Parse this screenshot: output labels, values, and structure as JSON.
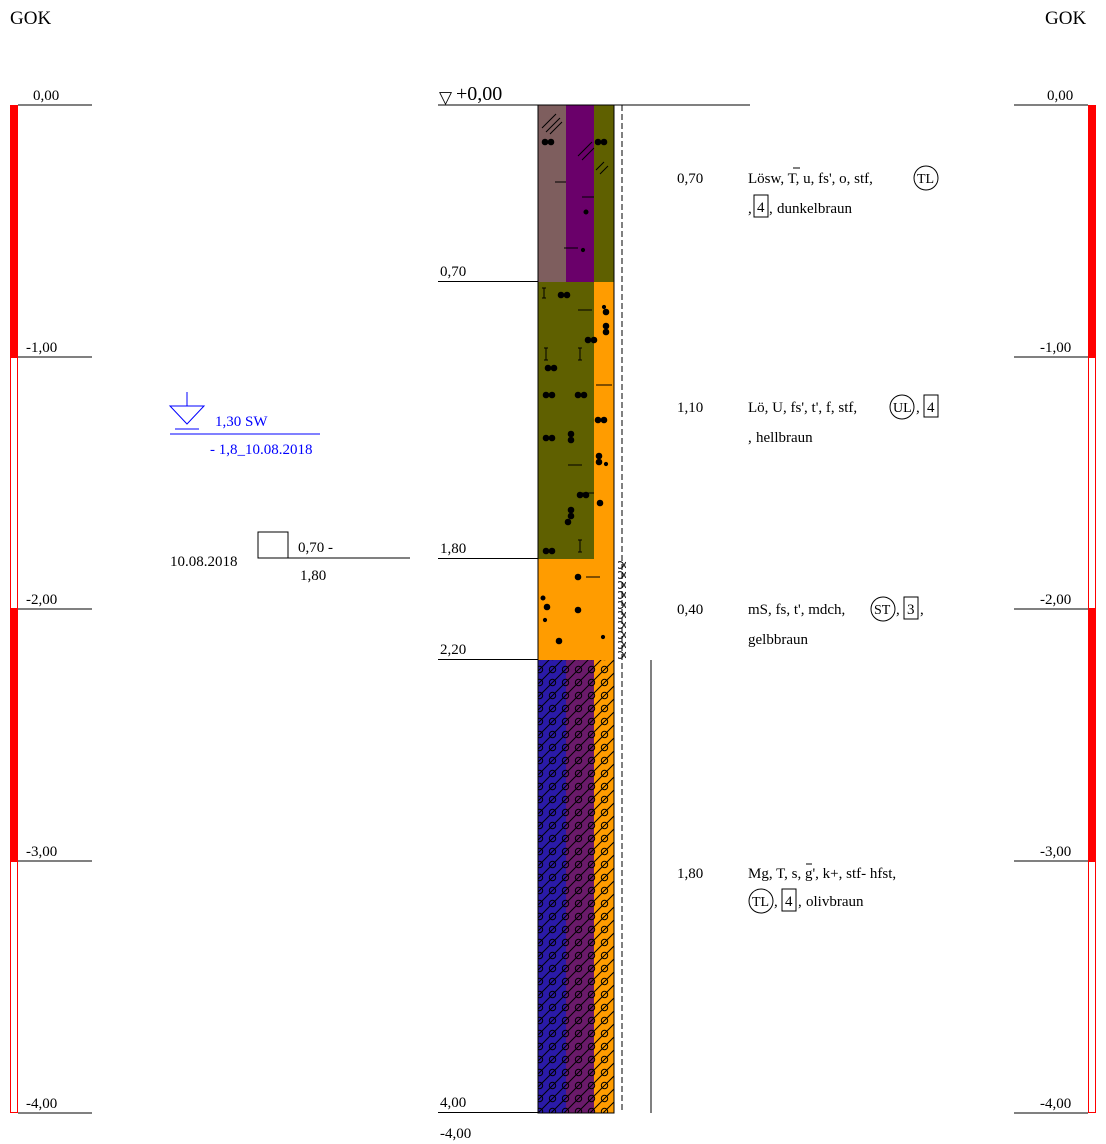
{
  "header": {
    "left_label": "GOK",
    "right_label": "GOK"
  },
  "colors": {
    "scale_red": "#ff0000",
    "water_blue": "#0000ff",
    "loess_brown": "#7e5e5e",
    "purple": "#6a006a",
    "olive": "#5f6000",
    "orange": "#ff9c00",
    "navy": "#2a1aa8",
    "plum": "#6a1a6a"
  },
  "scale": {
    "labels_left": [
      "0,00",
      "-1,00",
      "-2,00",
      "-3,00",
      "-4,00"
    ],
    "labels_right": [
      "0,00",
      "-1,00",
      "-2,00",
      "-3,00",
      "-4,00"
    ]
  },
  "top_marker": {
    "symbol": "▽",
    "value": "+0,00"
  },
  "bottom_label": "-4,00",
  "groundwater": {
    "line1": "1,30 SW",
    "line2": "- 1,8_10.08.2018"
  },
  "sample": {
    "date": "10.08.2018",
    "range_top": "0,70 -",
    "range_bottom": "1,80"
  },
  "layers": [
    {
      "depth_label": "0,70",
      "thickness": "0,70",
      "desc": "Lösw, T, u, fs', o, stf,",
      "badge_circle": "TL",
      "badge_box": "4",
      "tail": "dunkelbraun",
      "icons": [
        "pattern-loess-icon",
        "pattern-silt-icon"
      ]
    },
    {
      "depth_label": "1,80",
      "thickness": "1,10",
      "desc": "Lö, U, fs', t', f, stf,",
      "badge_circle": "UL",
      "badge_box": "4",
      "tail": "hellbraun",
      "icons": [
        "pattern-silt-icon"
      ]
    },
    {
      "depth_label": "2,20",
      "thickness": "0,40",
      "desc": "mS, fs, t', mdch,",
      "badge_circle": "ST",
      "badge_box": "3",
      "tail": "gelbbraun",
      "icons": [
        "pattern-sand-icon"
      ]
    },
    {
      "depth_label": "4,00",
      "thickness": "1,80",
      "desc": "Mg, T, s, g', k+, stf- hfst,",
      "badge_circle": "TL",
      "badge_box": "4",
      "tail": "olivbraun",
      "icons": [
        "pattern-gravel-icon"
      ]
    }
  ]
}
